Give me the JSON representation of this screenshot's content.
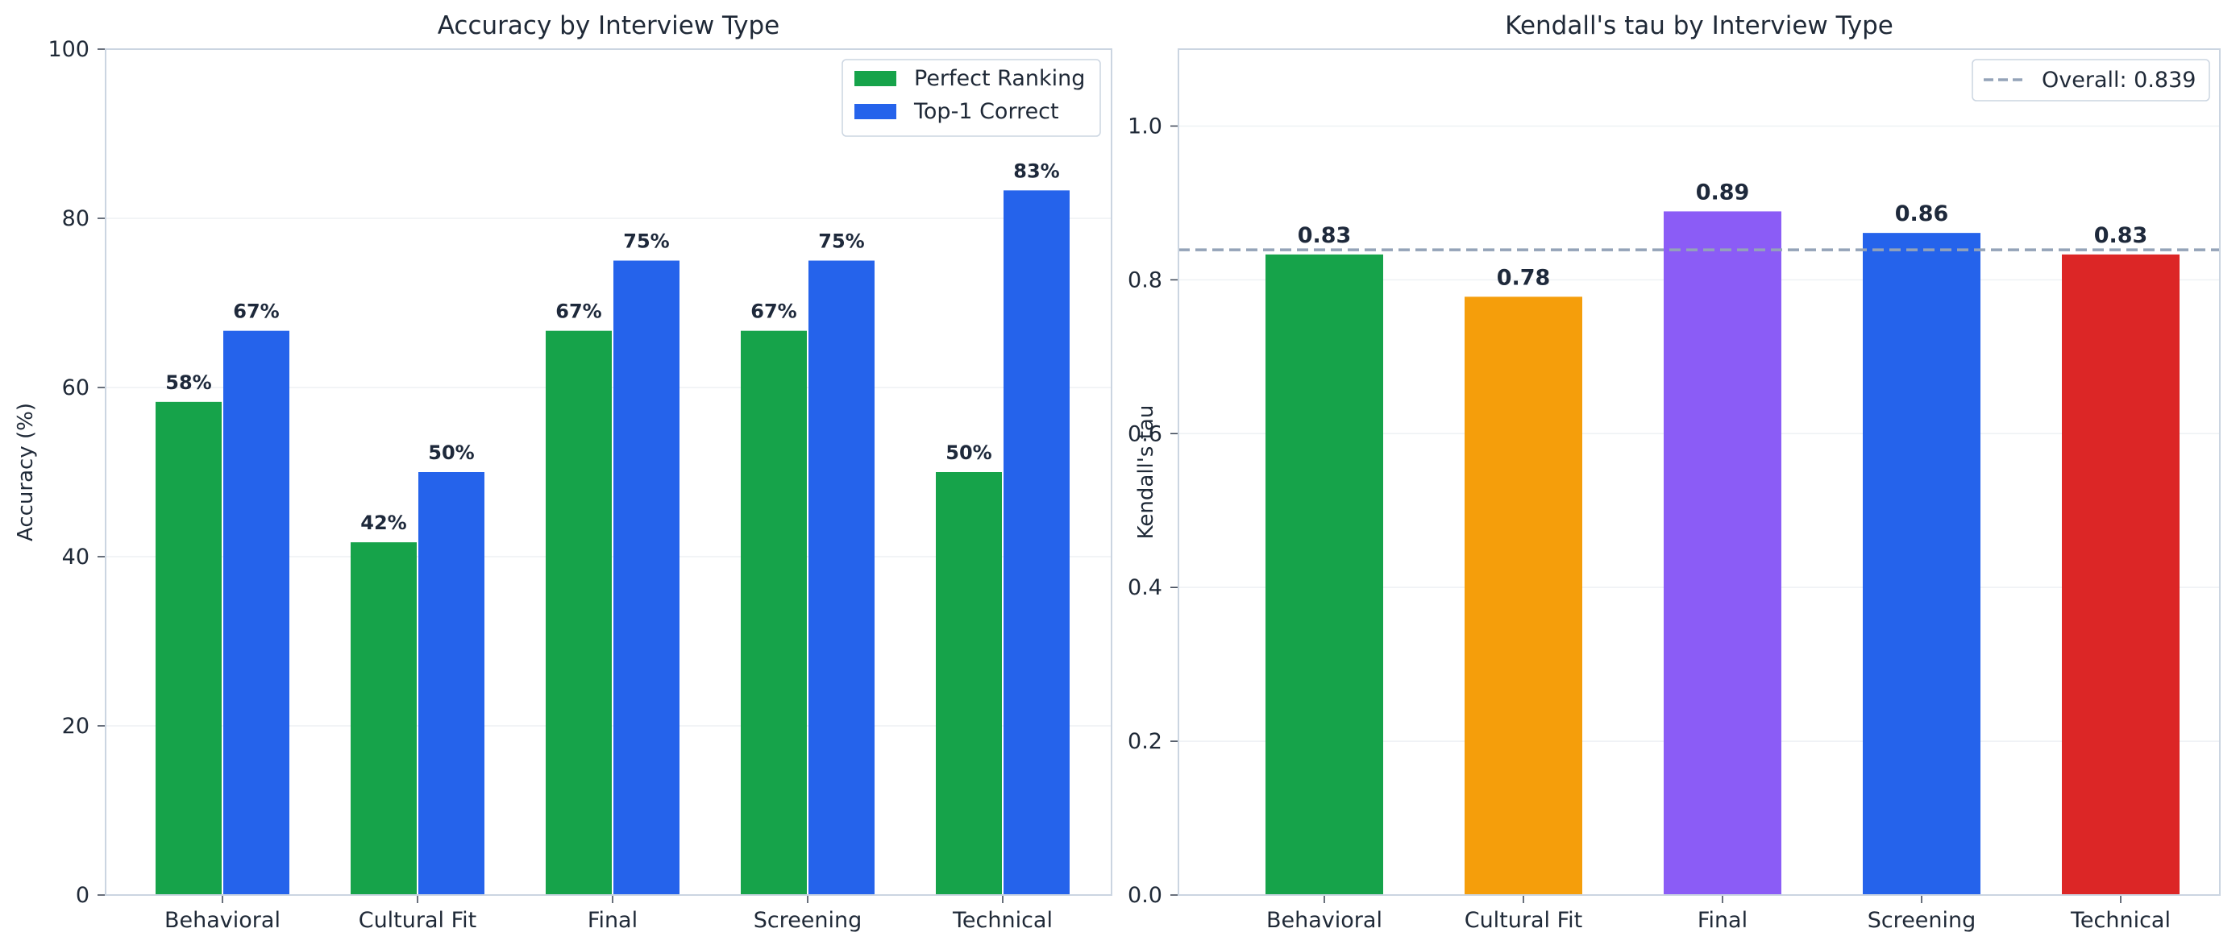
{
  "chart_data": [
    {
      "type": "bar",
      "title": "Accuracy by Interview Type",
      "xlabel": "",
      "ylabel": "Accuracy (%)",
      "ylim": [
        0,
        100
      ],
      "yticks": [
        0,
        20,
        40,
        60,
        80,
        100
      ],
      "categories": [
        "Behavioral",
        "Cultural Fit",
        "Final",
        "Screening",
        "Technical"
      ],
      "series": [
        {
          "name": "Perfect Ranking",
          "color": "#16a34a",
          "values": [
            58.3,
            41.7,
            66.7,
            66.7,
            50.0
          ],
          "labels": [
            "58%",
            "42%",
            "67%",
            "67%",
            "50%"
          ]
        },
        {
          "name": "Top-1 Correct",
          "color": "#2563eb",
          "values": [
            66.7,
            50.0,
            75.0,
            75.0,
            83.3
          ],
          "labels": [
            "67%",
            "50%",
            "75%",
            "75%",
            "83%"
          ]
        }
      ],
      "grid": true,
      "legend": "top-right"
    },
    {
      "type": "bar",
      "title": "Kendall's tau by Interview Type",
      "xlabel": "",
      "ylabel": "Kendall's tau",
      "ylim": [
        0,
        1.1
      ],
      "yticks": [
        "0.0",
        "0.2",
        "0.4",
        "0.6",
        "0.8",
        "1.0"
      ],
      "categories": [
        "Behavioral",
        "Cultural Fit",
        "Final",
        "Screening",
        "Technical"
      ],
      "values": [
        0.833,
        0.778,
        0.889,
        0.861,
        0.833
      ],
      "labels": [
        "0.83",
        "0.78",
        "0.89",
        "0.86",
        "0.83"
      ],
      "colors": [
        "#16a34a",
        "#f59e0b",
        "#8b5cf6",
        "#2563eb",
        "#dc2626"
      ],
      "reference_line": {
        "value": 0.839,
        "label": "Overall: 0.839",
        "color": "#94a3b8",
        "style": "dashed"
      },
      "grid": true,
      "legend": "top-right"
    }
  ]
}
